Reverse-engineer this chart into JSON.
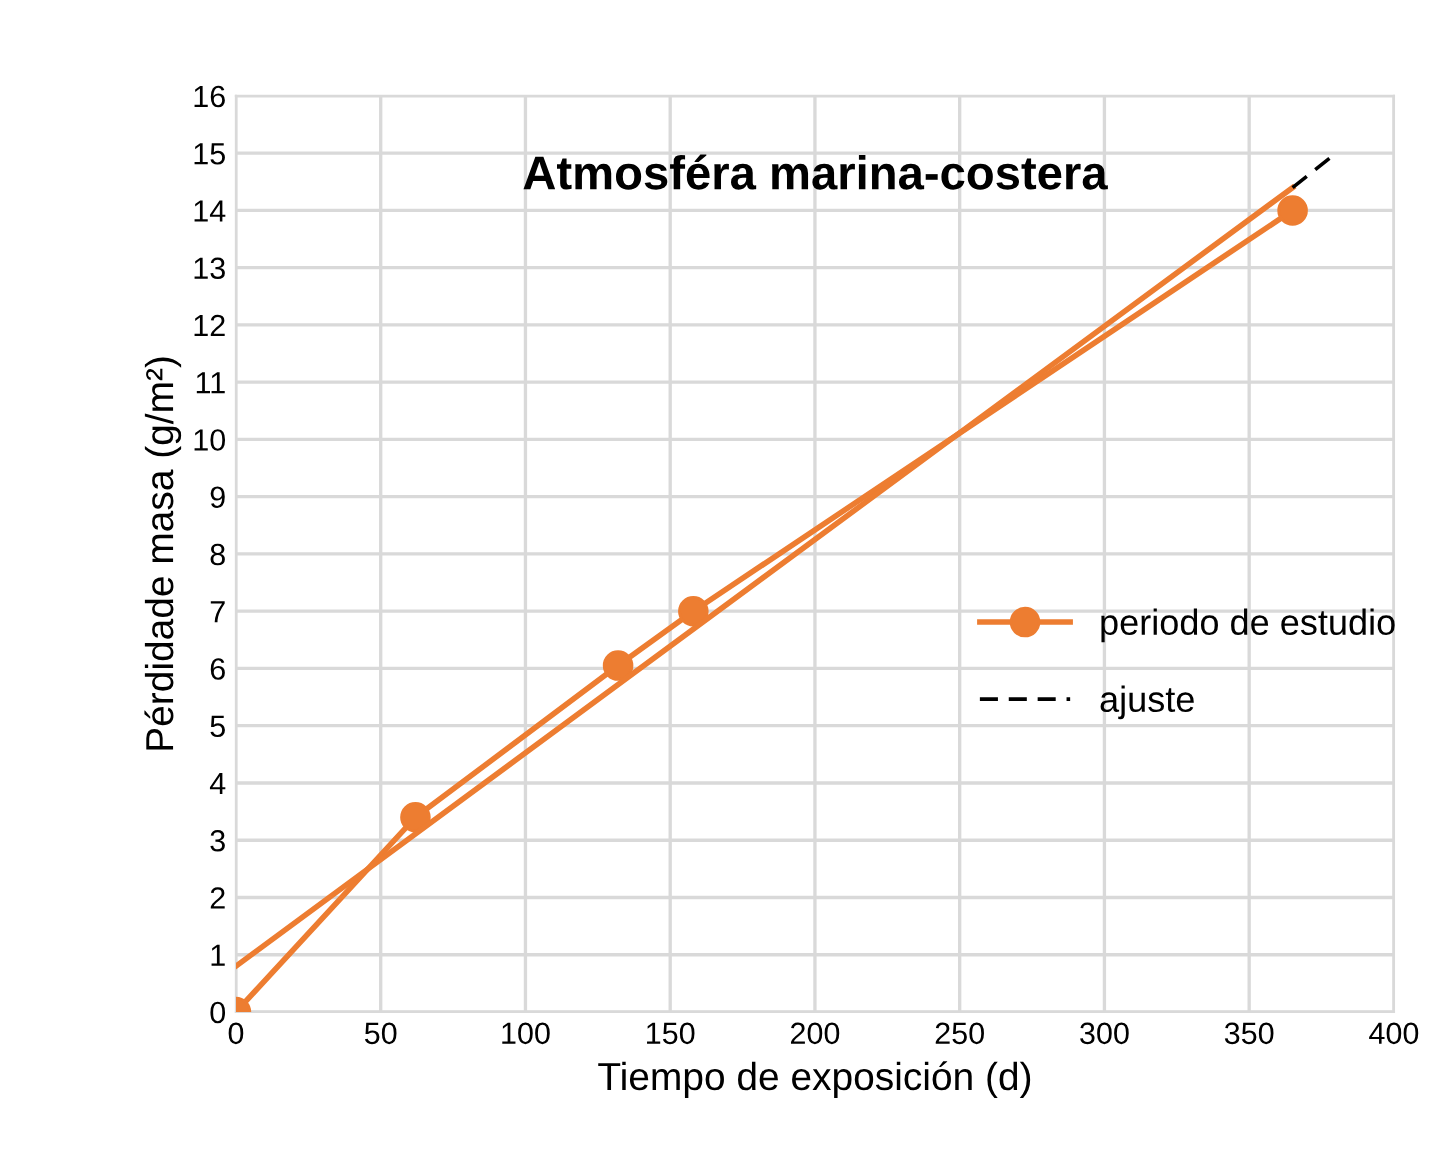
{
  "chart_data": {
    "type": "line",
    "title": "Atmosféra marina-costera",
    "xlabel": "Tiempo de exposición (d)",
    "ylabel": "Pérdidade masa (g/m²)",
    "xlim": [
      0,
      400
    ],
    "xticks": [
      0,
      50,
      100,
      150,
      200,
      250,
      300,
      350,
      400
    ],
    "ylim": [
      0,
      16
    ],
    "yticks": [
      0,
      1,
      2,
      3,
      4,
      5,
      6,
      7,
      8,
      9,
      10,
      11,
      12,
      13,
      14,
      15,
      16
    ],
    "grid": true,
    "legend": "right",
    "series": [
      {
        "name": "periodo de estudio",
        "color": "#ed7d31",
        "x": [
          0,
          62,
          132,
          158,
          365
        ],
        "values": [
          0,
          3.4,
          6.05,
          7.0,
          14.0
        ],
        "marker": "circle",
        "line_style": "solid"
      },
      {
        "color": "#ed7d31",
        "x": [
          0,
          365
        ],
        "values": [
          0.8,
          14.4
        ],
        "marker": "none",
        "line_style": "solid"
      },
      {
        "name": "ajuste",
        "color": "#000000",
        "x": [
          365,
          380
        ],
        "values": [
          14.4,
          15.0
        ],
        "marker": "none",
        "line_style": "dashed"
      }
    ]
  }
}
